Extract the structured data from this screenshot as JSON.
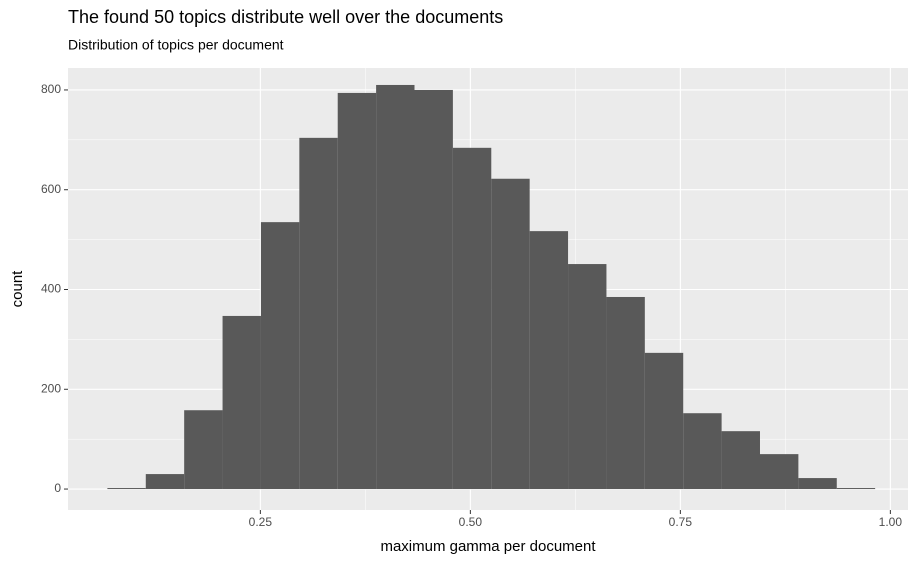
{
  "chart_data": {
    "type": "histogram",
    "title": "The found 50 topics distribute well over the documents",
    "subtitle": "Distribution of topics per document",
    "x_label": "maximum gamma per document",
    "y_label": "count",
    "bins": [
      0.0679,
      0.1136,
      0.1593,
      0.205,
      0.2507,
      0.2964,
      0.3421,
      0.3878,
      0.4335,
      0.4792,
      0.5249,
      0.5706,
      0.6163,
      0.662,
      0.7077,
      0.7534,
      0.7991,
      0.8448,
      0.8905,
      0.9362,
      0.9819
    ],
    "counts": [
      2,
      30,
      158,
      347,
      535,
      704,
      794,
      810,
      800,
      684,
      622,
      517,
      451,
      385,
      273,
      152,
      116,
      70,
      22,
      2
    ],
    "color": "#595959",
    "xlim": [
      0.021,
      1.021
    ],
    "ylim": [
      -42,
      844
    ],
    "xticks": [
      {
        "value": 0.25,
        "label": "0.25"
      },
      {
        "value": 0.5,
        "label": "0.50"
      },
      {
        "value": 0.75,
        "label": "0.75"
      },
      {
        "value": 1,
        "label": "1.00"
      }
    ],
    "yticks": [
      0,
      200,
      400,
      600,
      800
    ],
    "grid": true
  }
}
